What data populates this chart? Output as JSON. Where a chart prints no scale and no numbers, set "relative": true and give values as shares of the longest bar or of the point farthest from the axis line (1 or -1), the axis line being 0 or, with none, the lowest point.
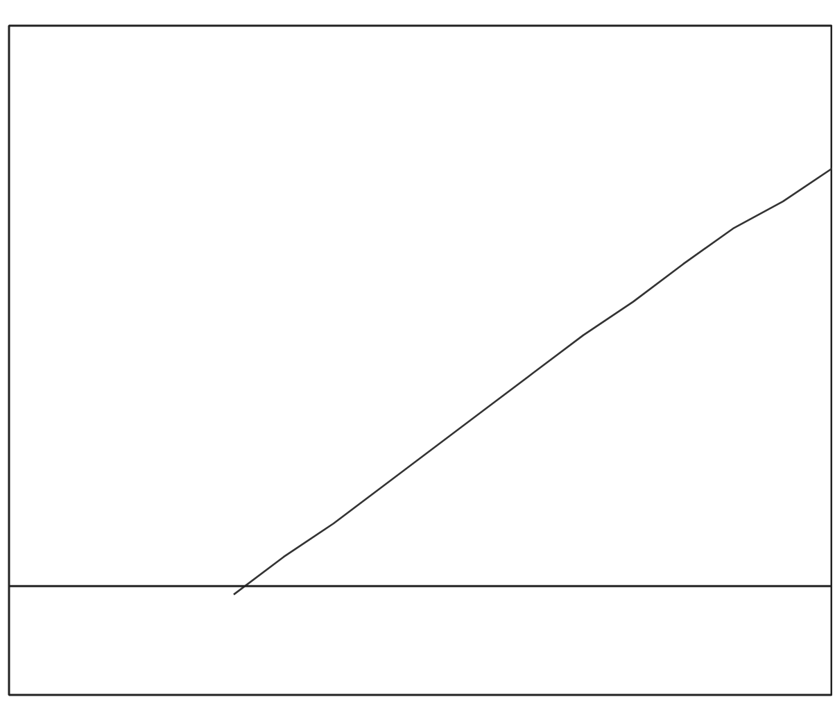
{
  "chart_data": {
    "type": "line",
    "relative": true,
    "categories": [
      null,
      null,
      null,
      null,
      null,
      null,
      null,
      null,
      null,
      null,
      null,
      null,
      null,
      null,
      null,
      null,
      null
    ],
    "series": [
      {
        "color": "#333333",
        "values": [
          null,
          null,
          null,
          null,
          -0.02,
          0.07,
          0.15,
          0.24,
          0.33,
          0.42,
          0.51,
          0.6,
          0.68,
          0.77,
          0.855,
          0.92,
          1.0
        ]
      }
    ],
    "marker": "none",
    "line_style": "solid",
    "grid": false,
    "tick_labels": false
  }
}
